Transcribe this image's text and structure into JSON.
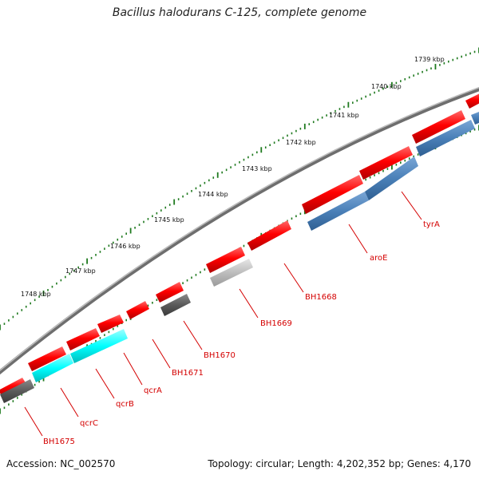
{
  "title": "Bacillus halodurans C-125, complete genome",
  "footer": {
    "accession": "Accession: NC_002570",
    "stats": "Topology: circular; Length: 4,202,352 bp; Genes: 4,170"
  },
  "scale_labels": [
    "1739 kbp",
    "1740 kbp",
    "1741 kbp",
    "1742 kbp",
    "1743 kbp",
    "1744 kbp",
    "1745 kbp",
    "1746 kbp",
    "1747 kbp",
    "1748 kbp"
  ],
  "gene_labels": [
    "tyrA",
    "aroE",
    "BH1668",
    "BH1669",
    "BH1670",
    "BH1671",
    "qcrA",
    "qcrB",
    "qcrC",
    "BH1675"
  ],
  "colors": {
    "forward_gene": "#ff0000",
    "reverse_gene_blue": "#4a80b8",
    "reverse_gene_cyan": "#00ffff",
    "reverse_gene_dark": "#5a5a5a",
    "reverse_gene_light": "#b8b8b8",
    "backbone": "#808080",
    "tick": "#1f7a1f",
    "label": "#d40000"
  }
}
